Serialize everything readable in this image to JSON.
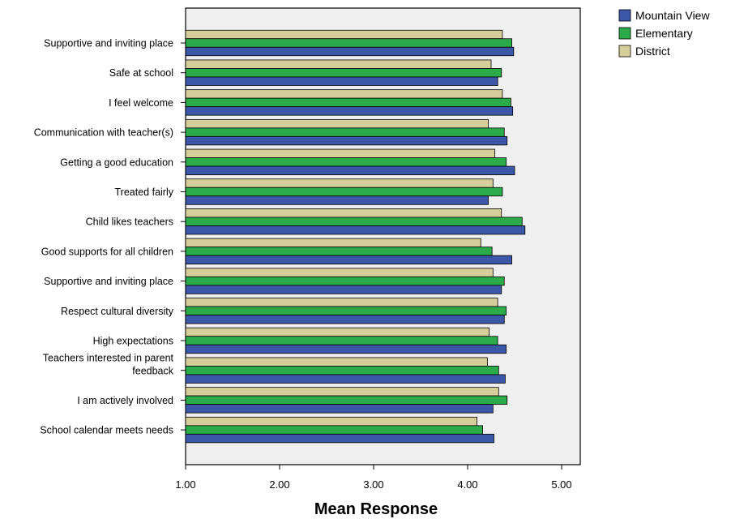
{
  "chart_data": {
    "type": "bar",
    "orientation": "horizontal",
    "categories": [
      "Supportive and inviting place",
      "Safe at school",
      "I feel welcome",
      "Communication with teacher(s)",
      "Getting a good education",
      "Treated fairly",
      "Child likes teachers",
      "Good supports for all children",
      "Supportive and inviting place",
      "Respect cultural diversity",
      "High expectations",
      "Teachers interested in parent feedback",
      "I am actively involved",
      "School calendar meets needs"
    ],
    "series": [
      {
        "name": "District",
        "color": "#d6ce9a",
        "values": [
          4.37,
          4.25,
          4.37,
          4.22,
          4.29,
          4.27,
          4.36,
          4.14,
          4.27,
          4.32,
          4.23,
          4.21,
          4.33,
          4.1
        ]
      },
      {
        "name": "Elementary",
        "color": "#2bab4a",
        "values": [
          4.47,
          4.36,
          4.46,
          4.39,
          4.41,
          4.37,
          4.58,
          4.26,
          4.39,
          4.41,
          4.32,
          4.33,
          4.42,
          4.16
        ]
      },
      {
        "name": "Mountain View",
        "color": "#3c56a8",
        "values": [
          4.49,
          4.32,
          4.48,
          4.42,
          4.5,
          4.22,
          4.61,
          4.47,
          4.36,
          4.39,
          4.41,
          4.4,
          4.27,
          4.28
        ]
      }
    ],
    "legend_order": [
      "Mountain View",
      "Elementary",
      "District"
    ],
    "xlabel": "Mean Response",
    "ylabel": "",
    "xlim": [
      1,
      5.2
    ],
    "xticks": [
      "1.00",
      "2.00",
      "3.00",
      "4.00",
      "5.00"
    ],
    "xtick_values": [
      1,
      2,
      3,
      4,
      5
    ],
    "grid": false,
    "legend_position": "top-right outside plot",
    "plot_background": "#efefef"
  }
}
